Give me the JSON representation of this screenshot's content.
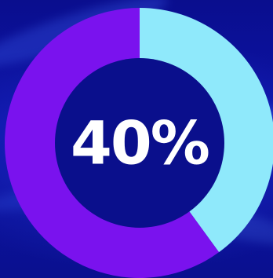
{
  "chart_data": {
    "type": "pie",
    "variant": "donut",
    "center_label": "40%",
    "slices": [
      {
        "value": 40,
        "color": "#8fe9fb"
      },
      {
        "value": 60,
        "color": "#7a12ee"
      }
    ],
    "start_angle": "12 o'clock",
    "direction": "clockwise"
  },
  "colors": {
    "background": "#0b0f9a",
    "donut_hole": "#0a0f8c",
    "label": "#ffffff"
  }
}
